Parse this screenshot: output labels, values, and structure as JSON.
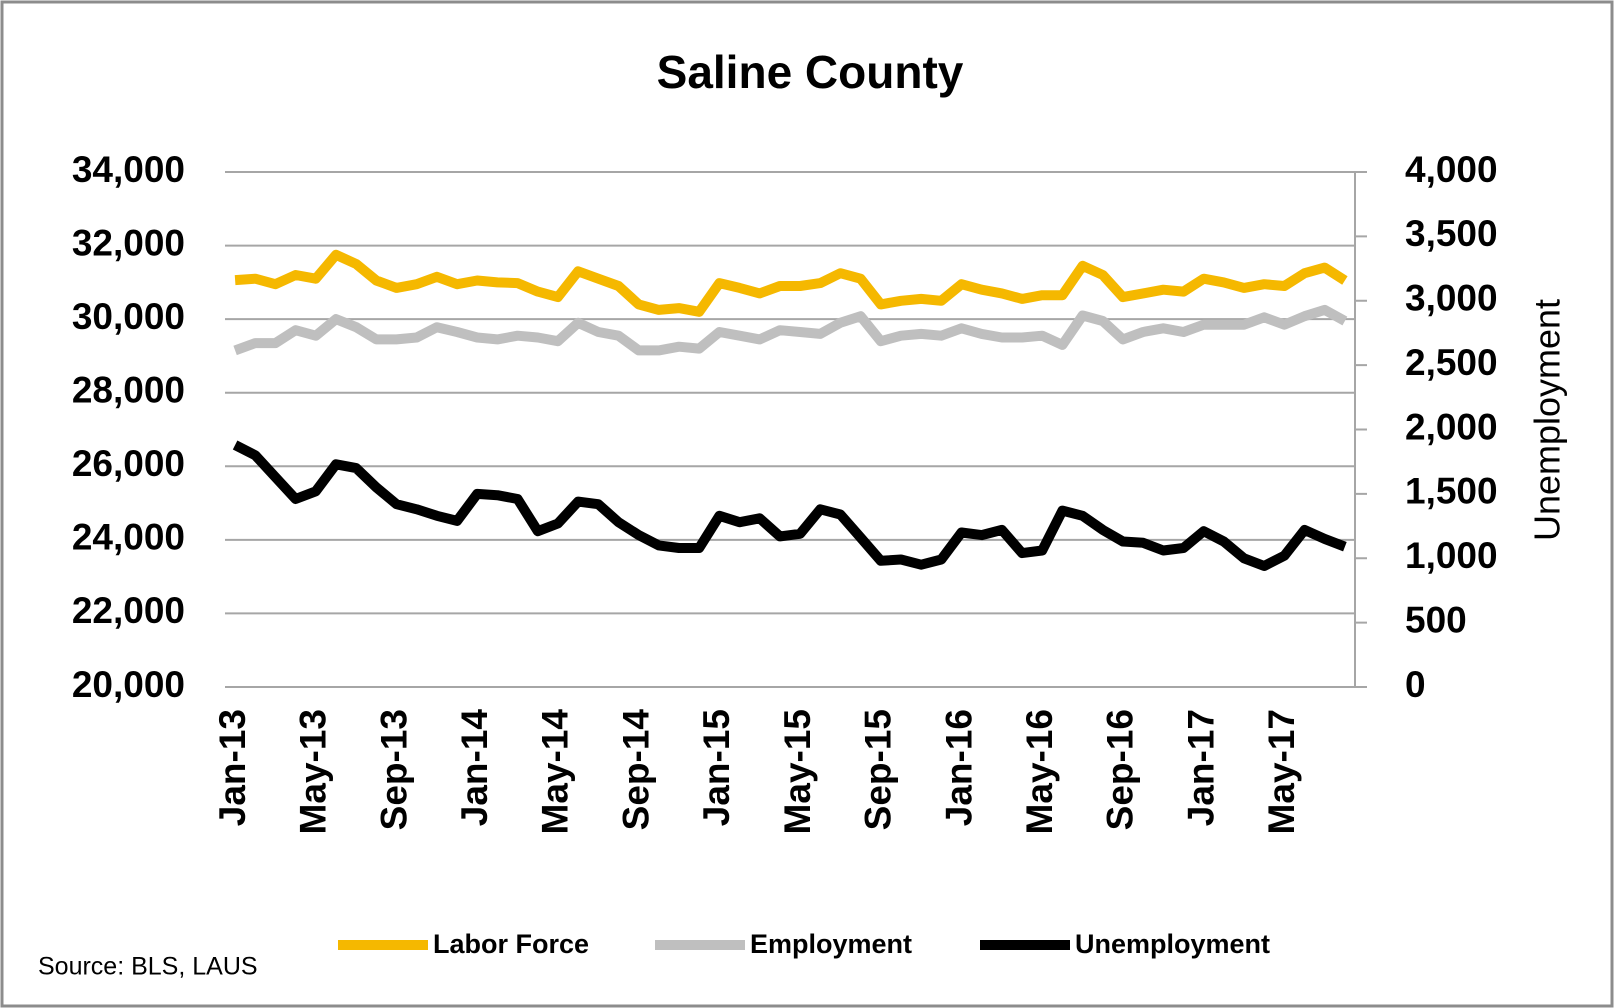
{
  "chart_data": {
    "type": "line",
    "title": "Saline County",
    "y2label": "Unemployment",
    "source": "Source: BLS, LAUS",
    "categories": [
      "Jan-13",
      null,
      null,
      null,
      "May-13",
      null,
      null,
      null,
      "Sep-13",
      null,
      null,
      null,
      "Jan-14",
      null,
      null,
      null,
      "May-14",
      null,
      null,
      null,
      "Sep-14",
      null,
      null,
      null,
      "Jan-15",
      null,
      null,
      null,
      "May-15",
      null,
      null,
      null,
      "Sep-15",
      null,
      null,
      null,
      "Jan-16",
      null,
      null,
      null,
      "May-16",
      null,
      null,
      null,
      "Sep-16",
      null,
      null,
      null,
      "Jan-17",
      null,
      null,
      null,
      "May-17",
      null,
      null,
      null
    ],
    "ylim": [
      20000,
      34000
    ],
    "yticks": [
      {
        "value": 20000,
        "label": "20,000"
      },
      {
        "value": 22000,
        "label": "22,000"
      },
      {
        "value": 24000,
        "label": "24,000"
      },
      {
        "value": 26000,
        "label": "26,000"
      },
      {
        "value": 28000,
        "label": "28,000"
      },
      {
        "value": 30000,
        "label": "30,000"
      },
      {
        "value": 32000,
        "label": "32,000"
      },
      {
        "value": 34000,
        "label": "34,000"
      }
    ],
    "y2lim": [
      0,
      4000
    ],
    "y2ticks": [
      0,
      500,
      {
        "value": 1000,
        "label": "1,000"
      },
      {
        "value": 1500,
        "label": "1,500"
      },
      {
        "value": 2000,
        "label": "2,000"
      },
      {
        "value": 2500,
        "label": "2,500"
      },
      {
        "value": 3000,
        "label": "3,000"
      },
      {
        "value": 3500,
        "label": "3,500"
      },
      {
        "value": 4000,
        "label": "4,000"
      }
    ],
    "grid": true,
    "legend": "bottom",
    "series": [
      {
        "name": "Labor Force",
        "color": "#f5b800",
        "values": [
          31060,
          31100,
          30950,
          31200,
          31100,
          31750,
          31500,
          31050,
          30850,
          30950,
          31150,
          30950,
          31050,
          31000,
          30980,
          30750,
          30600,
          31300,
          31100,
          30900,
          30400,
          30250,
          30300,
          30200,
          30980,
          30850,
          30700,
          30900,
          30900,
          30980,
          31250,
          31100,
          30400,
          30500,
          30550,
          30500,
          30950,
          30800,
          30700,
          30550,
          30650,
          30650,
          31450,
          31200,
          30600,
          30700,
          30800,
          30750,
          31100,
          31000,
          30850,
          30950,
          30900,
          31250,
          31400,
          31050
        ]
      },
      {
        "name": "Employment",
        "color": "#bfbfbf",
        "values": [
          29150,
          29350,
          29350,
          29700,
          29550,
          30000,
          29780,
          29450,
          29450,
          29500,
          29780,
          29650,
          29500,
          29450,
          29550,
          29500,
          29400,
          29900,
          29650,
          29550,
          29150,
          29150,
          29250,
          29200,
          29650,
          29550,
          29450,
          29700,
          29650,
          29600,
          29900,
          30080,
          29400,
          29550,
          29600,
          29550,
          29750,
          29600,
          29500,
          29500,
          29550,
          29300,
          30100,
          29950,
          29450,
          29650,
          29750,
          29650,
          29850,
          29850,
          29850,
          30050,
          29850,
          30080,
          30250,
          29950
        ]
      },
      {
        "name": "Unemployment",
        "color": "#000000",
        "axis": "y2",
        "values": [
          1880,
          1800,
          1630,
          1460,
          1520,
          1730,
          1700,
          1550,
          1420,
          1380,
          1330,
          1290,
          1500,
          1490,
          1460,
          1210,
          1270,
          1440,
          1420,
          1280,
          1180,
          1100,
          1080,
          1080,
          1330,
          1280,
          1310,
          1170,
          1190,
          1380,
          1340,
          1160,
          980,
          990,
          950,
          990,
          1200,
          1180,
          1220,
          1040,
          1060,
          1370,
          1330,
          1220,
          1130,
          1120,
          1060,
          1080,
          1210,
          1130,
          1000,
          940,
          1020,
          1220,
          1150,
          1090
        ]
      }
    ]
  }
}
